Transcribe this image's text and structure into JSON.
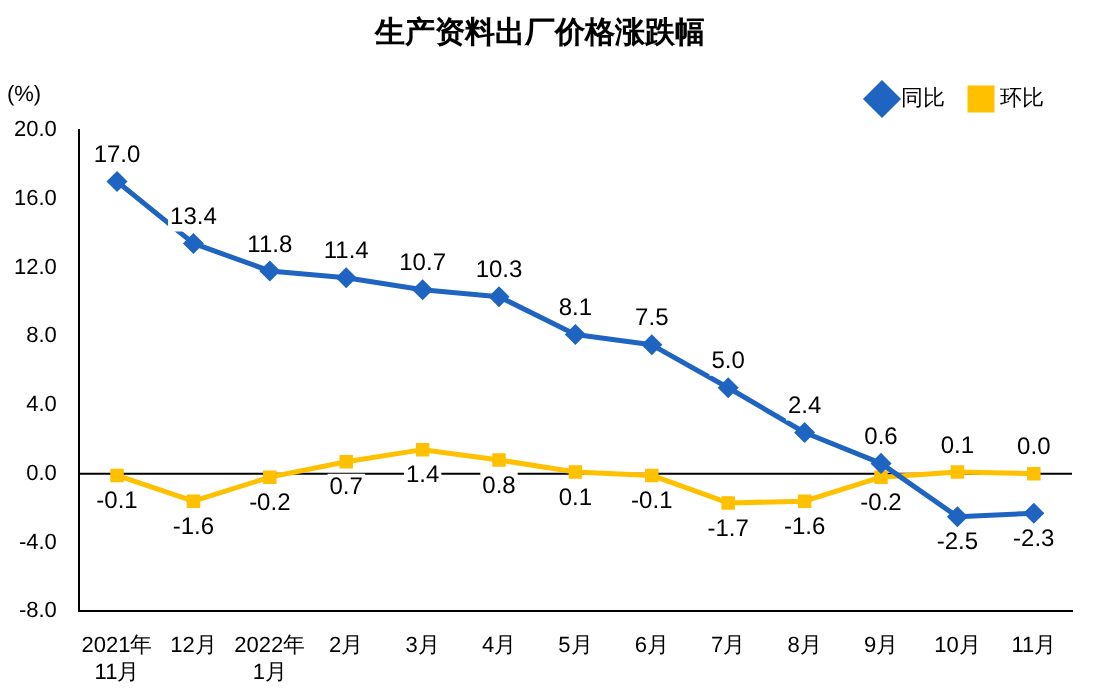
{
  "chart_data": {
    "type": "line",
    "title": "生产资料出厂价格涨跌幅",
    "ylabel": "(%)",
    "categories": [
      "2021年\n11月",
      "12月",
      "2022年\n1月",
      "2月",
      "3月",
      "4月",
      "5月",
      "6月",
      "7月",
      "8月",
      "9月",
      "10月",
      "11月"
    ],
    "series": [
      {
        "name": "同比",
        "color": "#1f64c0",
        "marker": "diamond",
        "values": [
          17.0,
          13.4,
          11.8,
          11.4,
          10.7,
          10.3,
          8.1,
          7.5,
          5.0,
          2.4,
          0.6,
          -2.5,
          -2.3
        ],
        "value_labels": [
          "17.0",
          "13.4",
          "11.8",
          "11.4",
          "10.7",
          "10.3",
          "8.1",
          "7.5",
          "5.0",
          "2.4",
          "0.6",
          "-2.5",
          "-2.3"
        ]
      },
      {
        "name": "环比",
        "color": "#ffc000",
        "marker": "square",
        "values": [
          -0.1,
          -1.6,
          -0.2,
          0.7,
          1.4,
          0.8,
          0.1,
          -0.1,
          -1.7,
          -1.6,
          -0.2,
          0.1,
          0.0
        ],
        "value_labels": [
          "-0.1",
          "-1.6",
          "-0.2",
          "0.7",
          "1.4",
          "0.8",
          "0.1",
          "-0.1",
          "-1.7",
          "-1.6",
          "-0.2",
          "0.1",
          "0.0"
        ]
      }
    ],
    "ylim": [
      -8,
      20
    ],
    "yticks": [
      {
        "value": -8,
        "label": "-8.0"
      },
      {
        "value": -4,
        "label": "-4.0"
      },
      {
        "value": 0,
        "label": "0.0"
      },
      {
        "value": 4,
        "label": "4.0"
      },
      {
        "value": 8,
        "label": "8.0"
      },
      {
        "value": 12,
        "label": "12.0"
      },
      {
        "value": 16,
        "label": "16.0"
      },
      {
        "value": 20,
        "label": "20.0"
      }
    ],
    "ref_lines": [
      {
        "axis": "y",
        "value": 0,
        "color": "#000000"
      }
    ],
    "grid": false,
    "legend": "top right",
    "line_style": "solid"
  }
}
